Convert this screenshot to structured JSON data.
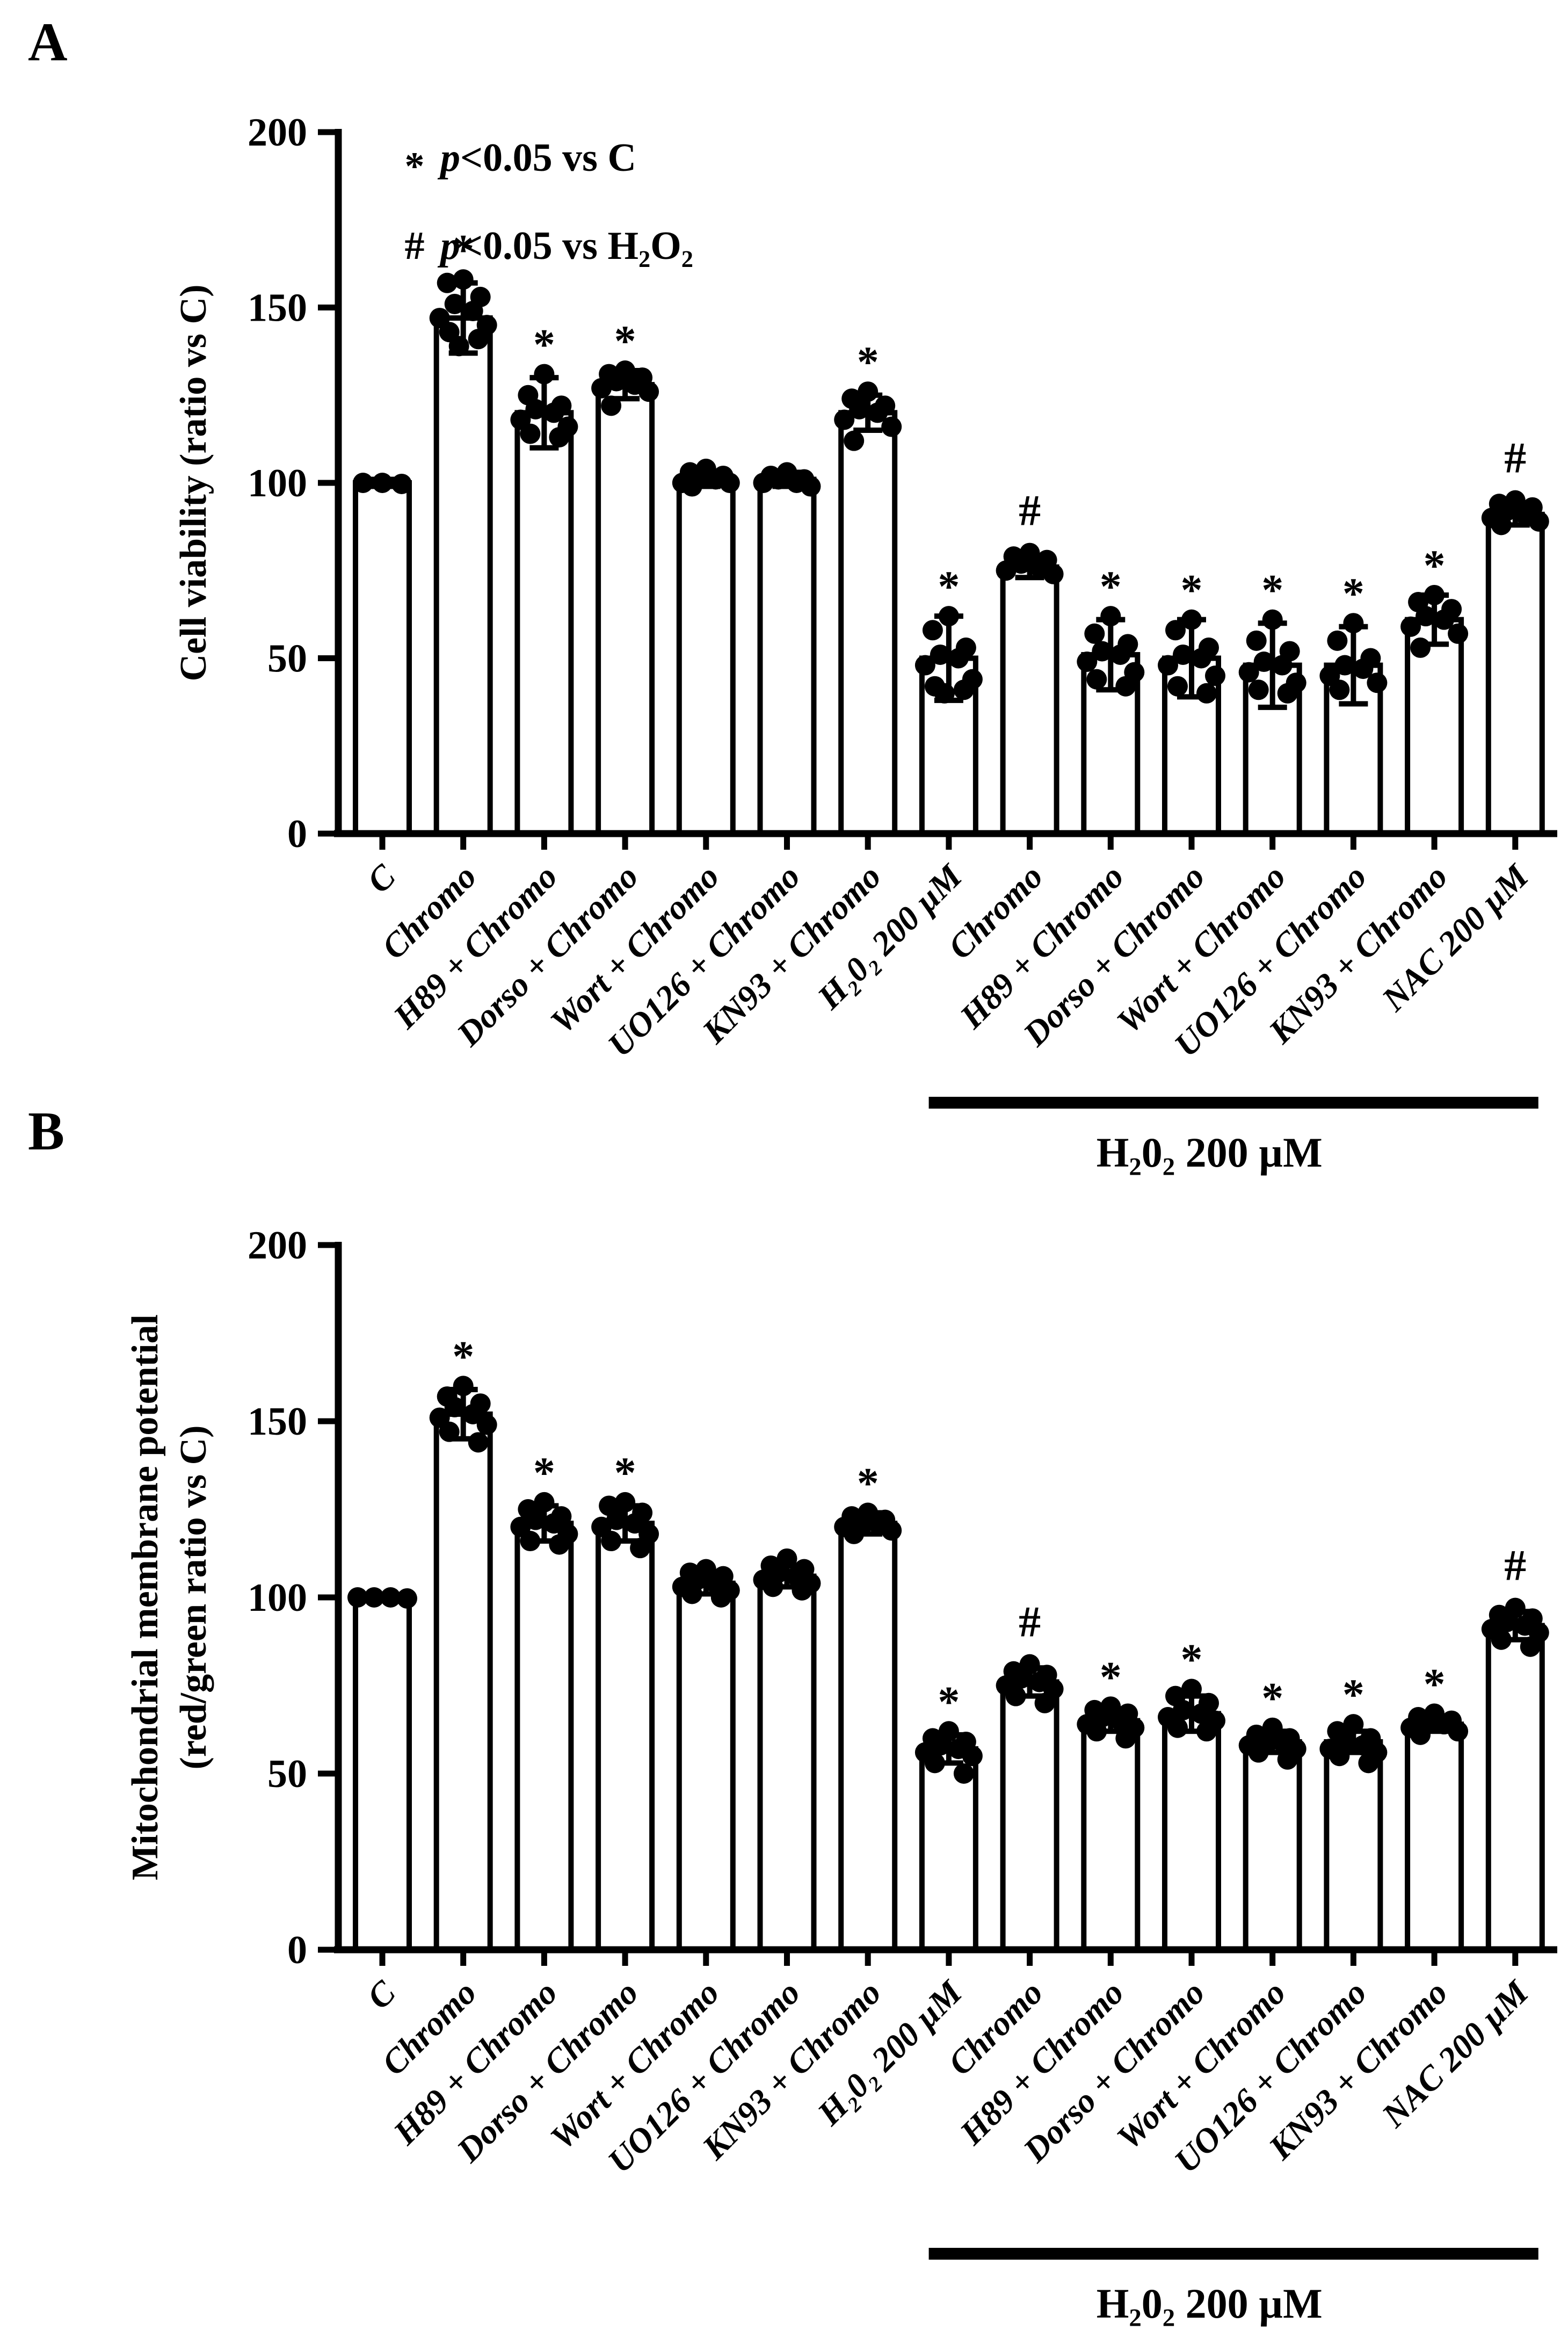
{
  "figure_accent_color": "#000000",
  "chart_data": [
    {
      "type": "bar",
      "panel_label": "A",
      "title": "",
      "ylabel_lines": [
        "Cell viability (ratio vs C)"
      ],
      "xlabel": "",
      "ylim": [
        0,
        200
      ],
      "yticks": [
        0,
        50,
        100,
        150,
        200
      ],
      "grid": false,
      "legend_position": "top-left-inside",
      "legend": [
        {
          "symbol": "*",
          "p": "p",
          "text": "<0.05 vs C"
        },
        {
          "symbol": "#",
          "p": "p",
          "text": "<0.05 vs H₂O₂"
        }
      ],
      "categories": [
        "C",
        "Chromo",
        "H89 + Chromo",
        "Dorso + Chromo",
        "Wort + Chromo",
        "UO126 + Chromo",
        "KN93 + Chromo",
        "H₂0₂ 200 µM",
        "Chromo",
        "H89 + Chromo",
        "Dorso + Chromo",
        "Wort + Chromo",
        "UO126 + Chromo",
        "KN93 + Chromo",
        "NAC 200 µM"
      ],
      "values": [
        100,
        147,
        120,
        128,
        101,
        101,
        120,
        50,
        76,
        51,
        50,
        48,
        48,
        61,
        91
      ],
      "errors": [
        1,
        10,
        10,
        4,
        2,
        2,
        5,
        12,
        3,
        10,
        11,
        12,
        11,
        7,
        3
      ],
      "annotations": [
        "",
        "*",
        "*",
        "*",
        "",
        "",
        "*",
        "*",
        "#",
        "*",
        "*",
        "*",
        "*",
        "*",
        "#"
      ],
      "points": [
        [
          100,
          100,
          99.7
        ],
        [
          158,
          157,
          153,
          151,
          149,
          147,
          145,
          143,
          141,
          139
        ],
        [
          131,
          125,
          122,
          121,
          120,
          118,
          116,
          114,
          113
        ],
        [
          132,
          131,
          130,
          129,
          128,
          127,
          126,
          122
        ],
        [
          104,
          103,
          102,
          101,
          101,
          100,
          100,
          99
        ],
        [
          103,
          102,
          101,
          101,
          100,
          100,
          99
        ],
        [
          126,
          124,
          122,
          121,
          120,
          118,
          116,
          112
        ],
        [
          62,
          58,
          53,
          51,
          50,
          48,
          44,
          42,
          41,
          40
        ],
        [
          80,
          79,
          78,
          77,
          76,
          75,
          74
        ],
        [
          62,
          57,
          54,
          52,
          51,
          49,
          46,
          44,
          42
        ],
        [
          61,
          58,
          53,
          51,
          50,
          48,
          45,
          42,
          40
        ],
        [
          61,
          55,
          52,
          49,
          48,
          46,
          43,
          41,
          40
        ],
        [
          60,
          55,
          50,
          48,
          47,
          45,
          43,
          41
        ],
        [
          68,
          66,
          64,
          62,
          61,
          59,
          57,
          53
        ],
        [
          95,
          94,
          93,
          92,
          91,
          90,
          89,
          88
        ]
      ],
      "group_line": {
        "label": "H₂0₂ 200 µM",
        "start_category_index": 8,
        "end_category_index": 14
      }
    },
    {
      "type": "bar",
      "panel_label": "B",
      "title": "",
      "ylabel_lines": [
        "Mitochondrial membrane potential",
        "(red/green ratio vs C)"
      ],
      "xlabel": "",
      "ylim": [
        0,
        200
      ],
      "yticks": [
        0,
        50,
        100,
        150,
        200
      ],
      "grid": false,
      "legend": [],
      "categories": [
        "C",
        "Chromo",
        "H89 + Chromo",
        "Dorso + Chromo",
        "Wort + Chromo",
        "UO126 + Chromo",
        "KN93 + Chromo",
        "H₂0₂ 200 µM",
        "Chromo",
        "H89 + Chromo",
        "Dorso + Chromo",
        "Wort + Chromo",
        "UO126 + Chromo",
        "KN93 + Chromo",
        "NAC 200 µM"
      ],
      "values": [
        100,
        152,
        121,
        121,
        104,
        106,
        121,
        57,
        76,
        65,
        67,
        59,
        59,
        64,
        92
      ],
      "errors": [
        0.8,
        7,
        5,
        5,
        3,
        3,
        3,
        4,
        4,
        3,
        5,
        3,
        3,
        2,
        4
      ],
      "annotations": [
        "",
        "*",
        "*",
        "*",
        "",
        "",
        "*",
        "*",
        "#",
        "*",
        "*",
        "*",
        "*",
        "*",
        "#"
      ],
      "points": [
        [
          100,
          100,
          100,
          99.7
        ],
        [
          160,
          157,
          155,
          154,
          152,
          151,
          149,
          147,
          144
        ],
        [
          127,
          125,
          123,
          122,
          121,
          120,
          118,
          116,
          115
        ],
        [
          127,
          126,
          124,
          122,
          121,
          120,
          118,
          116,
          114
        ],
        [
          108,
          107,
          106,
          105,
          104,
          103,
          102,
          101,
          100
        ],
        [
          111,
          109,
          108,
          107,
          106,
          105,
          104,
          103,
          102
        ],
        [
          124,
          123,
          122,
          121,
          121,
          120,
          119,
          118
        ],
        [
          62,
          60,
          59,
          58,
          57,
          56,
          55,
          53,
          50
        ],
        [
          81,
          79,
          78,
          77,
          76,
          75,
          74,
          72,
          70
        ],
        [
          69,
          68,
          67,
          66,
          65,
          64,
          63,
          62,
          60
        ],
        [
          74,
          72,
          70,
          68,
          67,
          66,
          65,
          63,
          62
        ],
        [
          63,
          61,
          60,
          59,
          59,
          58,
          57,
          56,
          54
        ],
        [
          64,
          62,
          60,
          59,
          58,
          57,
          56,
          55,
          53
        ],
        [
          67,
          66,
          65,
          64,
          64,
          63,
          62,
          61
        ],
        [
          97,
          95,
          94,
          93,
          92,
          91,
          90,
          88,
          86
        ]
      ],
      "group_line": {
        "label": "H₂0₂ 200 µM",
        "start_category_index": 8,
        "end_category_index": 14
      }
    }
  ]
}
